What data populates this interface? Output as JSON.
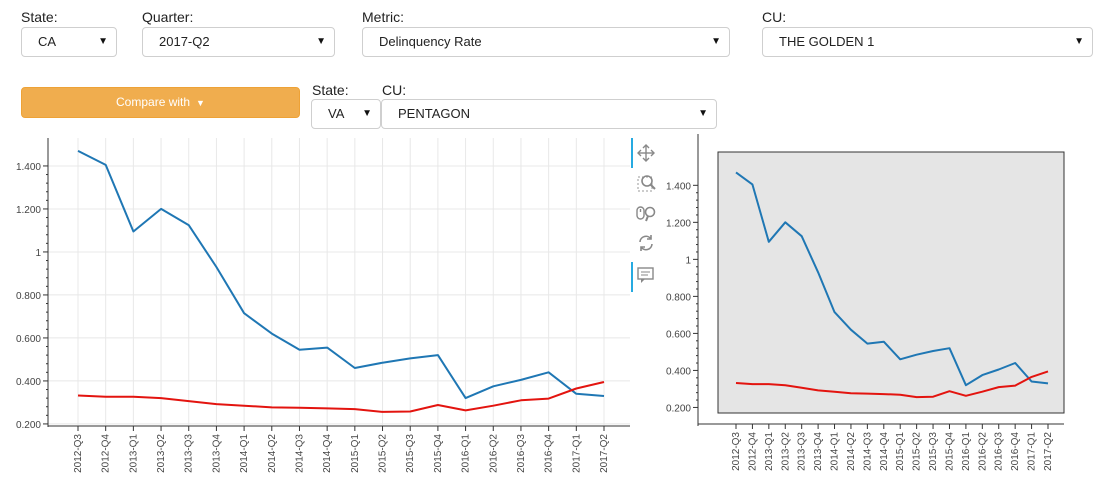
{
  "filters": {
    "state": {
      "label": "State:",
      "value": "CA"
    },
    "quarter": {
      "label": "Quarter:",
      "value": "2017-Q2"
    },
    "metric": {
      "label": "Metric:",
      "value": "Delinquency Rate"
    },
    "cu": {
      "label": "CU:",
      "value": "THE GOLDEN 1"
    }
  },
  "compare": {
    "button_label": "Compare with",
    "state": {
      "label": "State:",
      "value": "VA"
    },
    "cu": {
      "label": "CU:",
      "value": "PENTAGON"
    }
  },
  "toolbar": {
    "tools": [
      "pan-icon",
      "box-zoom-icon",
      "wheel-zoom-icon",
      "reset-icon",
      "hover-icon"
    ]
  },
  "chart_data": [
    {
      "type": "line",
      "x": [
        "2012-Q3",
        "2012-Q4",
        "2013-Q1",
        "2013-Q2",
        "2013-Q3",
        "2013-Q4",
        "2014-Q1",
        "2014-Q2",
        "2014-Q3",
        "2014-Q4",
        "2015-Q1",
        "2015-Q2",
        "2015-Q3",
        "2015-Q4",
        "2016-Q1",
        "2016-Q2",
        "2016-Q3",
        "2016-Q4",
        "2017-Q1",
        "2017-Q2"
      ],
      "series": [
        {
          "color": "#1f77b4",
          "values": [
            1.47,
            1.405,
            1.095,
            1.2,
            1.125,
            0.93,
            0.715,
            0.62,
            0.545,
            0.555,
            0.46,
            0.485,
            0.505,
            0.52,
            0.32,
            0.375,
            0.405,
            0.44,
            0.34,
            0.33
          ]
        },
        {
          "color": "#e3140f",
          "values": [
            0.332,
            0.326,
            0.326,
            0.32,
            0.306,
            0.292,
            0.285,
            0.277,
            0.275,
            0.272,
            0.269,
            0.256,
            0.258,
            0.288,
            0.263,
            0.285,
            0.31,
            0.318,
            0.365,
            0.395
          ]
        }
      ],
      "yticks": [
        "1.400",
        "1.200",
        "1",
        "0.800",
        "0.600",
        "0.400",
        "0.200"
      ],
      "ytick_values": [
        1.4,
        1.2,
        1.0,
        0.8,
        0.6,
        0.4,
        0.2
      ],
      "ylim": [
        0.195,
        1.53
      ],
      "grid": true
    },
    {
      "type": "line",
      "x": [
        "2012-Q3",
        "2012-Q4",
        "2013-Q1",
        "2013-Q2",
        "2013-Q3",
        "2013-Q4",
        "2014-Q1",
        "2014-Q2",
        "2014-Q3",
        "2014-Q4",
        "2015-Q1",
        "2015-Q2",
        "2015-Q3",
        "2015-Q4",
        "2016-Q1",
        "2016-Q2",
        "2016-Q3",
        "2016-Q4",
        "2017-Q1",
        "2017-Q2"
      ],
      "series": [
        {
          "color": "#1f77b4",
          "values": [
            1.47,
            1.405,
            1.095,
            1.2,
            1.125,
            0.93,
            0.715,
            0.62,
            0.545,
            0.555,
            0.46,
            0.485,
            0.505,
            0.52,
            0.32,
            0.375,
            0.405,
            0.44,
            0.34,
            0.33
          ]
        },
        {
          "color": "#e3140f",
          "values": [
            0.332,
            0.326,
            0.326,
            0.32,
            0.306,
            0.292,
            0.285,
            0.277,
            0.275,
            0.272,
            0.269,
            0.256,
            0.258,
            0.288,
            0.263,
            0.285,
            0.31,
            0.318,
            0.365,
            0.395
          ]
        }
      ],
      "yticks": [
        "1.400",
        "1.200",
        "1",
        "0.800",
        "0.600",
        "0.400",
        "0.200"
      ],
      "ytick_values": [
        1.4,
        1.2,
        1.0,
        0.8,
        0.6,
        0.4,
        0.2
      ],
      "ylim": [
        0.17,
        1.58
      ],
      "grid": false,
      "background": "#e5e5e5"
    }
  ]
}
